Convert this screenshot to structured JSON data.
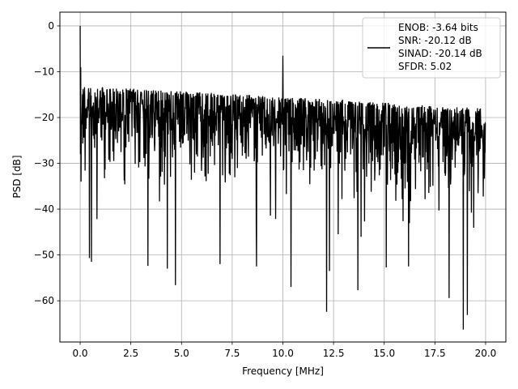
{
  "chart_data": {
    "type": "line",
    "title": "",
    "xlabel": "Frequency [MHz]",
    "ylabel": "PSD [dB]",
    "xlim": [
      -1.0,
      21.0
    ],
    "ylim": [
      -69.0,
      3.0
    ],
    "xticks": [
      0.0,
      2.5,
      5.0,
      7.5,
      10.0,
      12.5,
      15.0,
      17.5,
      20.0
    ],
    "xtick_labels": [
      "0.0",
      "2.5",
      "5.0",
      "7.5",
      "10.0",
      "12.5",
      "15.0",
      "17.5",
      "20.0"
    ],
    "yticks": [
      0,
      -10,
      -20,
      -30,
      -40,
      -50,
      -60
    ],
    "ytick_labels": [
      "0",
      "−10",
      "−20",
      "−30",
      "−40",
      "−50",
      "−60"
    ],
    "grid": true,
    "legend_position": "upper right",
    "series": [
      {
        "color": "#000000",
        "legend_lines": [
          "ENOB: -3.64 bits",
          "SNR: -20.12 dB",
          "SINAD: -20.14 dB",
          "SFDR: 5.02"
        ],
        "description": "Dense noisy spectrum from 0 to 20 MHz; upper envelope near -13 dB, falling slightly to about -18 dB at 20 MHz; typical lower values -35 to -45 dB; peak at 0 dB near 0 MHz and a spur near -6.5 dB at 10 MHz",
        "peaks": [
          {
            "x": 0.0,
            "y": 0.0
          },
          {
            "x": 10.0,
            "y": -6.5
          }
        ],
        "notable_minima": [
          {
            "x": 0.45,
            "y": -50.7
          },
          {
            "x": 0.55,
            "y": -51.5
          },
          {
            "x": 3.35,
            "y": -52.4
          },
          {
            "x": 4.3,
            "y": -53.0
          },
          {
            "x": 4.7,
            "y": -56.6
          },
          {
            "x": 6.9,
            "y": -52.0
          },
          {
            "x": 8.7,
            "y": -52.5
          },
          {
            "x": 10.4,
            "y": -57.0
          },
          {
            "x": 12.15,
            "y": -62.4
          },
          {
            "x": 12.3,
            "y": -53.5
          },
          {
            "x": 13.7,
            "y": -57.7
          },
          {
            "x": 15.1,
            "y": -52.7
          },
          {
            "x": 16.2,
            "y": -52.5
          },
          {
            "x": 18.2,
            "y": -59.4
          },
          {
            "x": 18.9,
            "y": -66.3
          },
          {
            "x": 19.1,
            "y": -63.1
          }
        ]
      }
    ]
  }
}
